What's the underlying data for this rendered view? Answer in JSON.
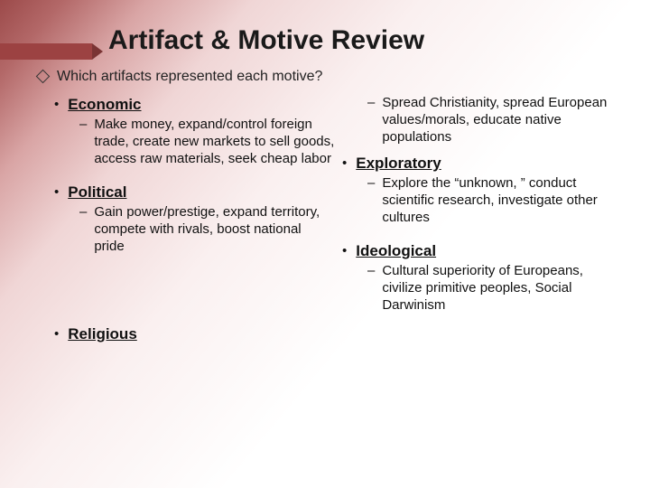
{
  "title": "Artifact & Motive Review",
  "subtitle": "Which artifacts represented each motive?",
  "left": {
    "items": [
      {
        "head": "Economic",
        "sub": "Make money, expand/control foreign trade, create new markets to sell goods, access raw materials, seek cheap labor"
      },
      {
        "head": "Political",
        "sub": "Gain power/prestige, expand territory, compete with rivals, boost national pride"
      },
      {
        "head": "Religious",
        "sub": ""
      }
    ]
  },
  "right": {
    "first_sub": "Spread Christianity, spread European values/morals, educate native populations",
    "items": [
      {
        "head": "Exploratory",
        "sub": "Explore the “unknown, ” conduct scientific research, investigate other cultures"
      },
      {
        "head": "Ideological",
        "sub": "Cultural superiority of Europeans, civilize primitive peoples, Social Darwinism"
      }
    ]
  },
  "style": {
    "accent_color": "#9c4242",
    "title_fontsize": 30,
    "subtitle_fontsize": 16,
    "head_fontsize": 17,
    "sub_fontsize": 15
  }
}
